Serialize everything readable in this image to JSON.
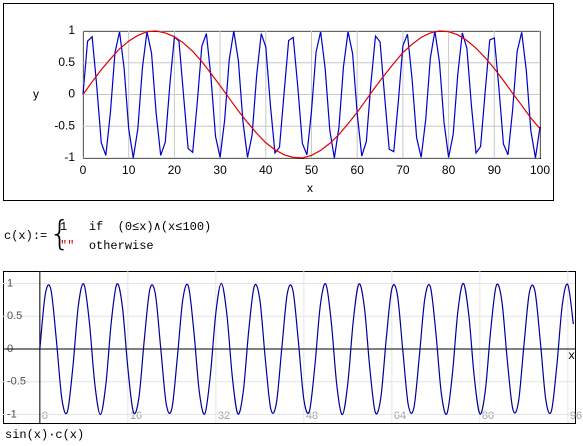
{
  "chart_data": [
    {
      "type": "line",
      "xlabel": "x",
      "ylabel": "y",
      "xlim": [
        0,
        100
      ],
      "ylim": [
        -1,
        1
      ],
      "xticks": [
        0,
        10,
        20,
        30,
        40,
        50,
        60,
        70,
        80,
        90,
        100
      ],
      "yticks": [
        -1,
        -0.5,
        0,
        0.5,
        1
      ],
      "grid": true,
      "axis_style": "boxed",
      "series": [
        {
          "color": "#0000cc",
          "x": [
            0,
            1,
            2,
            3,
            4,
            5,
            6,
            7,
            8,
            9,
            10,
            11,
            12,
            13,
            14,
            15,
            16,
            17,
            18,
            19,
            20,
            21,
            22,
            23,
            24,
            25,
            26,
            27,
            28,
            29,
            30,
            31,
            32,
            33,
            34,
            35,
            36,
            37,
            38,
            39,
            40,
            41,
            42,
            43,
            44,
            45,
            46,
            47,
            48,
            49,
            50,
            51,
            52,
            53,
            54,
            55,
            56,
            57,
            58,
            59,
            60,
            61,
            62,
            63,
            64,
            65,
            66,
            67,
            68,
            69,
            70,
            71,
            72,
            73,
            74,
            75,
            76,
            77,
            78,
            79,
            80,
            81,
            82,
            83,
            84,
            85,
            86,
            87,
            88,
            89,
            90,
            91,
            92,
            93,
            94,
            95,
            96,
            97,
            98,
            99,
            100
          ],
          "values": [
            0,
            0.84,
            0.91,
            0.14,
            -0.76,
            -0.96,
            -0.28,
            0.66,
            0.99,
            0.41,
            -0.54,
            -1,
            -0.54,
            0.42,
            0.99,
            0.65,
            -0.29,
            -0.96,
            -0.75,
            0.15,
            0.91,
            0.84,
            -0.01,
            -0.85,
            -0.91,
            -0.13,
            0.76,
            0.96,
            0.27,
            -0.66,
            -0.99,
            -0.4,
            0.55,
            1,
            0.53,
            -0.43,
            -0.99,
            -0.64,
            0.3,
            0.96,
            0.75,
            -0.16,
            -0.92,
            -0.83,
            0.02,
            0.85,
            0.9,
            0.12,
            -0.77,
            -0.95,
            -0.26,
            0.67,
            0.99,
            0.4,
            -0.56,
            -1,
            -0.52,
            0.44,
            0.99,
            0.64,
            -0.3,
            -0.97,
            -0.74,
            0.17,
            0.92,
            0.83,
            -0.03,
            -0.86,
            -0.9,
            -0.11,
            0.77,
            0.95,
            0.25,
            -0.68,
            -0.99,
            -0.39,
            0.57,
            1,
            0.51,
            -0.44,
            -0.99,
            -0.63,
            0.31,
            0.97,
            0.73,
            -0.18,
            -0.92,
            -0.82,
            0.04,
            0.86,
            0.89,
            0.11,
            -0.78,
            -0.95,
            -0.25,
            0.68,
            0.98,
            0.38,
            -0.57,
            -1,
            -0.51
          ]
        },
        {
          "color": "#e00000",
          "x": [
            0,
            2,
            4,
            6,
            8,
            10,
            12,
            14,
            16,
            18,
            20,
            22,
            24,
            26,
            28,
            30,
            32,
            34,
            36,
            38,
            40,
            42,
            44,
            46,
            48,
            50,
            52,
            54,
            56,
            58,
            60,
            62,
            64,
            66,
            68,
            70,
            72,
            74,
            76,
            78,
            80,
            82,
            84,
            86,
            88,
            90,
            92,
            94,
            96,
            98,
            100
          ],
          "values": [
            0,
            0.2,
            0.39,
            0.56,
            0.72,
            0.84,
            0.93,
            0.99,
            1,
            0.97,
            0.91,
            0.81,
            0.68,
            0.52,
            0.33,
            0.14,
            -0.06,
            -0.26,
            -0.44,
            -0.61,
            -0.76,
            -0.87,
            -0.95,
            -0.99,
            -1,
            -0.96,
            -0.88,
            -0.77,
            -0.63,
            -0.46,
            -0.28,
            -0.08,
            0.12,
            0.31,
            0.49,
            0.66,
            0.79,
            0.9,
            0.97,
            1,
            0.99,
            0.94,
            0.85,
            0.73,
            0.58,
            0.41,
            0.22,
            0.02,
            -0.17,
            -0.37,
            -0.54
          ]
        }
      ]
    },
    {
      "type": "line",
      "xlabel": "x",
      "ylabel": "sin(x)·c(x)",
      "xlim": [
        -6.7,
        97.3
      ],
      "ylim": [
        -1.13,
        1.19
      ],
      "xticks": [
        0,
        16,
        32,
        48,
        64,
        80,
        96
      ],
      "yticks": [
        -1,
        -0.5,
        0,
        0.5,
        1
      ],
      "grid": true,
      "axis_style": "crossed",
      "smooth": true,
      "series": [
        {
          "color": "#000099",
          "x": [
            0,
            1,
            2,
            3,
            4,
            5,
            6,
            7,
            8,
            9,
            10,
            11,
            12,
            13,
            14,
            15,
            16,
            17,
            18,
            19,
            20,
            21,
            22,
            23,
            24,
            25,
            26,
            27,
            28,
            29,
            30,
            31,
            32,
            33,
            34,
            35,
            36,
            37,
            38,
            39,
            40,
            41,
            42,
            43,
            44,
            45,
            46,
            47,
            48,
            49,
            50,
            51,
            52,
            53,
            54,
            55,
            56,
            57,
            58,
            59,
            60,
            61,
            62,
            63,
            64,
            65,
            66,
            67,
            68,
            69,
            70,
            71,
            72,
            73,
            74,
            75,
            76,
            77,
            78,
            79,
            80,
            81,
            82,
            83,
            84,
            85,
            86,
            87,
            88,
            89,
            90,
            91,
            92,
            93,
            94,
            95,
            96,
            97
          ],
          "values": [
            0,
            0.84,
            0.91,
            0.14,
            -0.76,
            -0.96,
            -0.28,
            0.66,
            0.99,
            0.41,
            -0.54,
            -1,
            -0.54,
            0.42,
            0.99,
            0.65,
            -0.29,
            -0.96,
            -0.75,
            0.15,
            0.91,
            0.84,
            -0.01,
            -0.85,
            -0.91,
            -0.13,
            0.76,
            0.96,
            0.27,
            -0.66,
            -0.99,
            -0.4,
            0.55,
            1,
            0.53,
            -0.43,
            -0.99,
            -0.64,
            0.3,
            0.96,
            0.75,
            -0.16,
            -0.92,
            -0.83,
            0.02,
            0.85,
            0.9,
            0.12,
            -0.77,
            -0.95,
            -0.26,
            0.67,
            0.99,
            0.4,
            -0.56,
            -1,
            -0.52,
            0.44,
            0.99,
            0.64,
            -0.3,
            -0.97,
            -0.74,
            0.17,
            0.92,
            0.83,
            -0.03,
            -0.86,
            -0.9,
            -0.11,
            0.77,
            0.95,
            0.25,
            -0.68,
            -0.99,
            -0.39,
            0.57,
            1,
            0.51,
            -0.44,
            -0.99,
            -0.63,
            0.31,
            0.97,
            0.73,
            -0.18,
            -0.92,
            -0.82,
            0.04,
            0.86,
            0.89,
            0.11,
            -0.78,
            -0.95,
            -0.25,
            0.68,
            0.98,
            0.38
          ]
        }
      ]
    }
  ],
  "formula": {
    "lhs": "c(x)",
    "assign": ":=",
    "case1_value": "1",
    "case1_condition": "if  (0≤x)∧(x≤100)",
    "case2_value": "\"\"",
    "case2_condition": "otherwise"
  }
}
